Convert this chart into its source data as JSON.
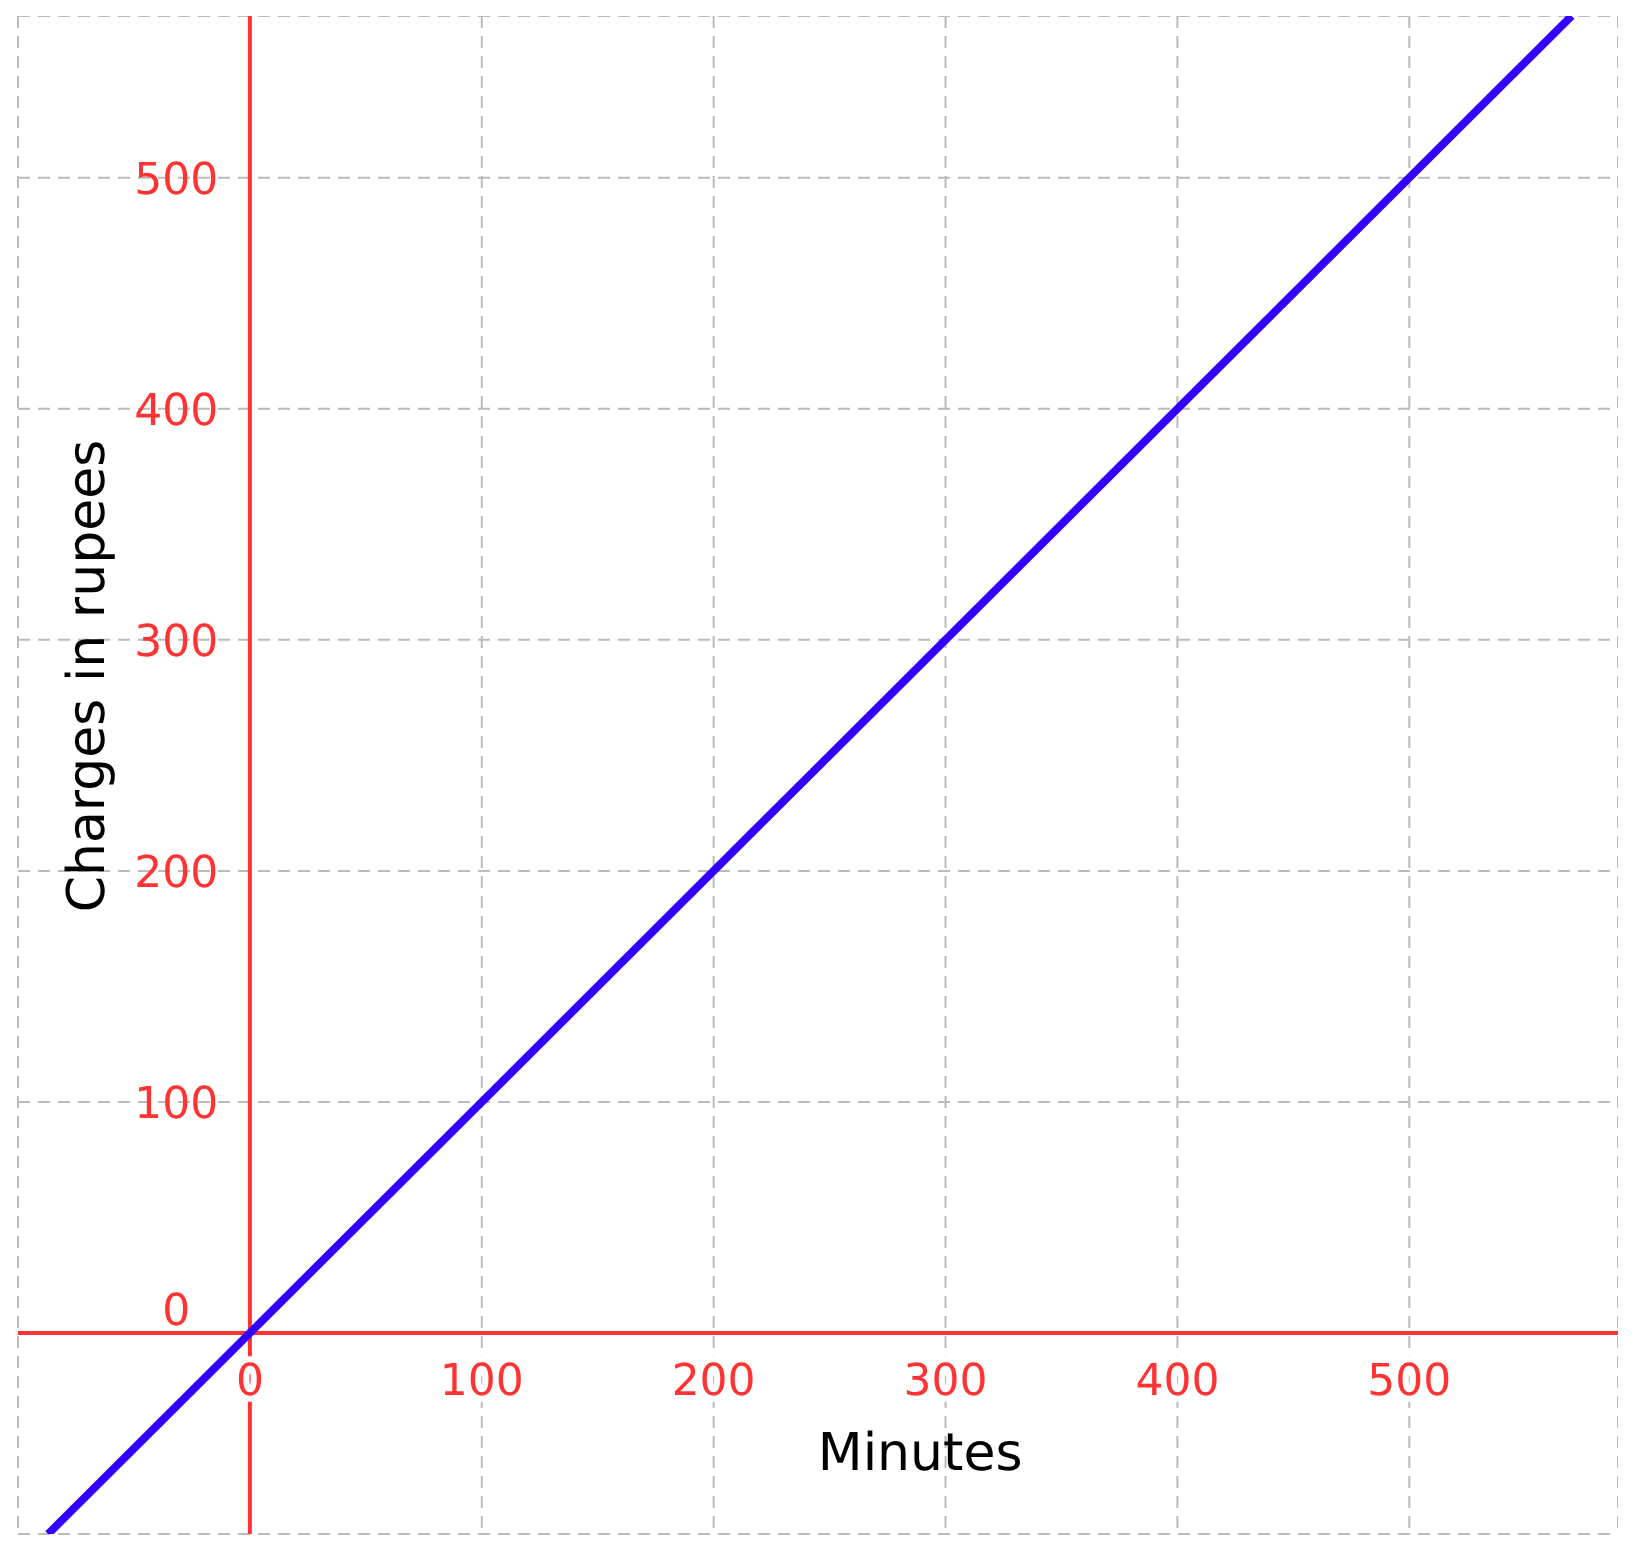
{
  "chart_data": {
    "type": "line",
    "xlabel": "Minutes",
    "ylabel": "Charges in rupees",
    "x": [
      -87,
      570
    ],
    "series": [
      {
        "color": "#3300ff",
        "values": [
          -87,
          570
        ]
      }
    ],
    "xlim": [
      -100,
      590
    ],
    "ylim": [
      -87,
      570
    ],
    "xticks": [
      {
        "value": -100,
        "label": null
      },
      0,
      100,
      200,
      300,
      400,
      500
    ],
    "yticks": [
      0,
      100,
      200,
      300,
      400,
      500
    ],
    "grid": true,
    "legend": false,
    "marker": "none",
    "line_style": "solid"
  }
}
